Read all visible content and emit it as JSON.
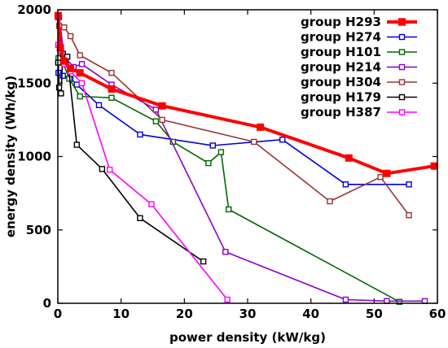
{
  "chart_data": {
    "type": "line",
    "xlabel": "power density (kW/kg)",
    "ylabel": "energy density (Wh/kg)",
    "xlim": [
      0,
      60
    ],
    "ylim": [
      0,
      2000
    ],
    "xticks": [
      0,
      10,
      20,
      30,
      40,
      50,
      60
    ],
    "yticks": [
      0,
      500,
      1000,
      1500,
      2000
    ],
    "legend_position": "top-right",
    "series": [
      {
        "name": "group H293",
        "color": "#ff0000",
        "marker": "square-filled",
        "emphasis": true,
        "x": [
          0.05,
          0.4,
          1.0,
          2.0,
          3.5,
          8.5,
          16.5,
          32.0,
          46.0,
          52.0,
          59.5
        ],
        "y": [
          1960,
          1740,
          1650,
          1600,
          1570,
          1460,
          1345,
          1200,
          990,
          885,
          935
        ]
      },
      {
        "name": "group H274",
        "color": "#0000dd",
        "marker": "square-open",
        "x": [
          0.05,
          0.1,
          0.8,
          2.0,
          3.0,
          6.5,
          13.0,
          24.5,
          35.5,
          45.5,
          55.5
        ],
        "y": [
          1950,
          1570,
          1550,
          1530,
          1490,
          1350,
          1150,
          1075,
          1115,
          810,
          810
        ]
      },
      {
        "name": "group H101",
        "color": "#006600",
        "marker": "square-open",
        "x": [
          0.1,
          0.8,
          1.8,
          3.5,
          8.5,
          15.5,
          18.2,
          23.8,
          25.8,
          27.0,
          54.0
        ],
        "y": [
          1670,
          1640,
          1530,
          1410,
          1400,
          1240,
          1100,
          955,
          1030,
          640,
          10
        ]
      },
      {
        "name": "group H214",
        "color": "#8800cc",
        "marker": "square-open",
        "x": [
          0.2,
          1.0,
          2.5,
          3.8,
          8.5,
          15.5,
          26.5,
          45.5,
          52.0,
          58.0
        ],
        "y": [
          1950,
          1680,
          1610,
          1630,
          1490,
          1320,
          350,
          25,
          15,
          15
        ]
      },
      {
        "name": "group H304",
        "color": "#993333",
        "marker": "square-open",
        "x": [
          0.2,
          1.0,
          2.0,
          3.5,
          8.5,
          16.5,
          31.0,
          43.0,
          51.0,
          55.5
        ],
        "y": [
          1890,
          1880,
          1820,
          1690,
          1570,
          1250,
          1100,
          695,
          860,
          600
        ]
      },
      {
        "name": "group H179",
        "color": "#000000",
        "marker": "square-open",
        "x": [
          0.05,
          0.2,
          0.5,
          0.8,
          1.5,
          3.0,
          7.0,
          13.0,
          23.0
        ],
        "y": [
          1640,
          1470,
          1430,
          1700,
          1680,
          1080,
          915,
          580,
          285
        ]
      },
      {
        "name": "group H387",
        "color": "#ff00ff",
        "marker": "square-open",
        "x": [
          0.05,
          0.5,
          1.0,
          2.0,
          3.8,
          8.2,
          14.8,
          26.8
        ],
        "y": [
          1760,
          1720,
          1630,
          1580,
          1500,
          910,
          675,
          25
        ]
      }
    ]
  }
}
